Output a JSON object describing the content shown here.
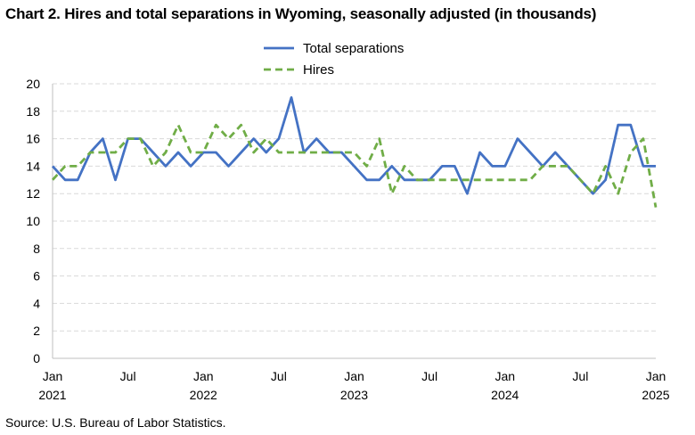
{
  "title": "Chart 2. Hires and total separations in Wyoming, seasonally adjusted (in thousands)",
  "source": "Source: U.S. Bureau of Labor Statistics.",
  "chart_data": {
    "type": "line",
    "title": "Chart 2. Hires and total separations in Wyoming, seasonally adjusted (in thousands)",
    "xlabel": "",
    "ylabel": "",
    "ylim": [
      0,
      20
    ],
    "yticks": [
      0,
      2,
      4,
      6,
      8,
      10,
      12,
      14,
      16,
      18,
      20
    ],
    "grid": "horizontal dashed",
    "legend_position": "top-center",
    "x_tick_labels": [
      {
        "month": "Jan",
        "year": "2021",
        "index": 0
      },
      {
        "month": "Jul",
        "year": "",
        "index": 6
      },
      {
        "month": "Jan",
        "year": "2022",
        "index": 12
      },
      {
        "month": "Jul",
        "year": "",
        "index": 18
      },
      {
        "month": "Jan",
        "year": "2023",
        "index": 24
      },
      {
        "month": "Jul",
        "year": "",
        "index": 30
      },
      {
        "month": "Jan",
        "year": "2024",
        "index": 36
      },
      {
        "month": "Jul",
        "year": "",
        "index": 42
      },
      {
        "month": "Jan",
        "year": "2025",
        "index": 48
      }
    ],
    "x": [
      "2021-01",
      "2021-02",
      "2021-03",
      "2021-04",
      "2021-05",
      "2021-06",
      "2021-07",
      "2021-08",
      "2021-09",
      "2021-10",
      "2021-11",
      "2021-12",
      "2022-01",
      "2022-02",
      "2022-03",
      "2022-04",
      "2022-05",
      "2022-06",
      "2022-07",
      "2022-08",
      "2022-09",
      "2022-10",
      "2022-11",
      "2022-12",
      "2023-01",
      "2023-02",
      "2023-03",
      "2023-04",
      "2023-05",
      "2023-06",
      "2023-07",
      "2023-08",
      "2023-09",
      "2023-10",
      "2023-11",
      "2023-12",
      "2024-01",
      "2024-02",
      "2024-03",
      "2024-04",
      "2024-05",
      "2024-06",
      "2024-07",
      "2024-08",
      "2024-09",
      "2024-10",
      "2024-11",
      "2024-12",
      "2025-01"
    ],
    "series": [
      {
        "name": "Total separations",
        "color": "#4472C4",
        "style": "solid",
        "values": [
          14,
          13,
          13,
          15,
          16,
          13,
          16,
          16,
          15,
          14,
          15,
          14,
          15,
          15,
          14,
          15,
          16,
          15,
          16,
          19,
          15,
          16,
          15,
          15,
          14,
          13,
          13,
          14,
          13,
          13,
          13,
          14,
          14,
          12,
          15,
          14,
          14,
          16,
          15,
          14,
          15,
          14,
          13,
          12,
          13,
          17,
          17,
          14,
          14
        ]
      },
      {
        "name": "Hires",
        "color": "#70AD47",
        "style": "dashed",
        "values": [
          13,
          14,
          14,
          15,
          15,
          15,
          16,
          16,
          14,
          15,
          17,
          15,
          15,
          17,
          16,
          17,
          15,
          16,
          15,
          15,
          15,
          15,
          15,
          15,
          15,
          14,
          16,
          12,
          14,
          13,
          13,
          13,
          13,
          13,
          13,
          13,
          13,
          13,
          13,
          14,
          14,
          14,
          13,
          12,
          14,
          12,
          15,
          16,
          11
        ]
      }
    ]
  }
}
